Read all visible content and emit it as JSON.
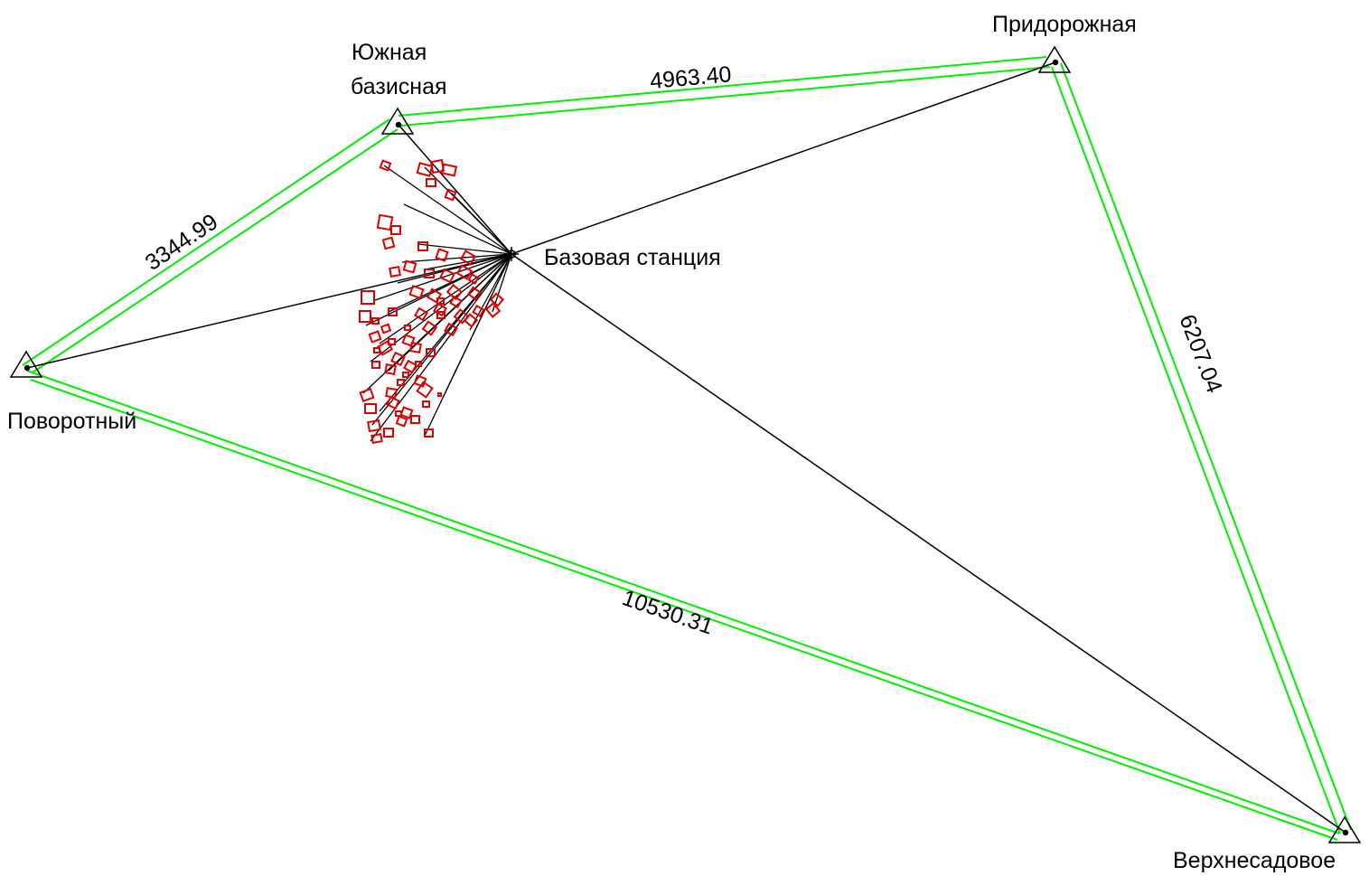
{
  "stations": {
    "yuzhnaya": {
      "name_line1": "Южная",
      "name_line2": "базисная"
    },
    "pridorozhnaya": {
      "name": "Придорожная"
    },
    "povorotny": {
      "name": "Поворотный"
    },
    "verkhnesadovoe": {
      "name": "Верхнесадовое"
    }
  },
  "base_station": {
    "name": "Базовая станция"
  },
  "baselines": {
    "yuzhnaya_pridorozhnaya": "4963.40",
    "povorotny_yuzhnaya": "3344.99",
    "pridorozhnaya_verkhnesadovoe": "6207.04",
    "povorotny_verkhnesadovoe": "10530.31"
  },
  "colors": {
    "baseline": "#00ee00",
    "ray": "#000000",
    "building": "#e00000",
    "background": "#ffffff"
  }
}
